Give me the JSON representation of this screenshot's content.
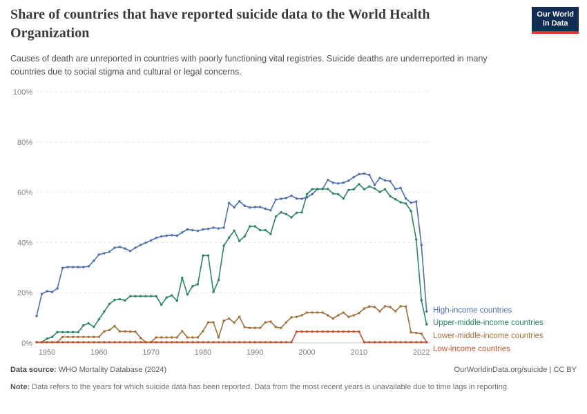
{
  "header": {
    "title": "Share of countries that have reported suicide data to the World Health Organization",
    "subtitle": "Causes of death are unreported in countries with poorly functioning vital registries. Suicide deaths are underreported in many countries due to social stigma and cultural or legal concerns."
  },
  "logo": {
    "line1": "Our World",
    "line2": "in Data",
    "bg_color": "#122B52",
    "bar_color": "#D8352E"
  },
  "chart_data": {
    "type": "line",
    "title": "Share of countries that have reported suicide data to the World Health Organization",
    "xlabel": "",
    "ylabel": "",
    "xlim": [
      1948,
      2023
    ],
    "ylim": [
      0,
      100
    ],
    "grid": "horizontal-dashed",
    "legend_position": "right-of-line-ends",
    "y_ticks": [
      0,
      20,
      40,
      60,
      80,
      100
    ],
    "y_tick_suffix": "%",
    "x_ticks": [
      1950,
      1960,
      1970,
      1980,
      1990,
      2000,
      2010,
      2022
    ],
    "x": [
      1948,
      1949,
      1950,
      1951,
      1952,
      1953,
      1954,
      1955,
      1956,
      1957,
      1958,
      1959,
      1960,
      1961,
      1962,
      1963,
      1964,
      1965,
      1966,
      1967,
      1968,
      1969,
      1970,
      1971,
      1972,
      1973,
      1974,
      1975,
      1976,
      1977,
      1978,
      1979,
      1980,
      1981,
      1982,
      1983,
      1984,
      1985,
      1986,
      1987,
      1988,
      1989,
      1990,
      1991,
      1992,
      1993,
      1994,
      1995,
      1996,
      1997,
      1998,
      1999,
      2000,
      2001,
      2002,
      2003,
      2004,
      2005,
      2006,
      2007,
      2008,
      2009,
      2010,
      2011,
      2012,
      2013,
      2014,
      2015,
      2016,
      2017,
      2018,
      2019,
      2020,
      2021,
      2022,
      2023
    ],
    "series": [
      {
        "name": "High-income countries",
        "color": "#4D6FAE",
        "values": [
          10.7,
          19.5,
          20.6,
          20.3,
          21.7,
          29.9,
          30.2,
          30.2,
          30.2,
          30.2,
          30.5,
          32.7,
          35.2,
          35.7,
          36.3,
          37.9,
          38.2,
          37.6,
          36.6,
          37.9,
          39,
          39.9,
          40.8,
          41.8,
          42.4,
          42.7,
          42.9,
          42.7,
          44,
          45.2,
          44.9,
          44.6,
          45.2,
          45.4,
          45.9,
          45.6,
          45.9,
          55.7,
          54,
          56.4,
          54.6,
          53.9,
          54.1,
          54.1,
          53.4,
          52.8,
          57.1,
          57.4,
          57.7,
          58.6,
          57.5,
          57.4,
          58,
          59.2,
          61.2,
          61.3,
          64.9,
          63.8,
          63.5,
          63.8,
          64.6,
          66,
          67.2,
          67.4,
          66.9,
          62.9,
          65.7,
          64.7,
          64.4,
          61.3,
          61.7,
          57.5,
          55.8,
          56.3,
          39,
          12.5
        ]
      },
      {
        "name": "Upper-middle-income countries",
        "color": "#2C8465",
        "values": [
          0.3,
          0.3,
          1.7,
          2.4,
          4.3,
          4.3,
          4.3,
          4.3,
          4.3,
          7,
          7.8,
          6.4,
          9.4,
          12.5,
          15.5,
          17.1,
          17.4,
          16.9,
          18.6,
          18.6,
          18.6,
          18.6,
          18.6,
          18.6,
          15.2,
          18.1,
          18.9,
          16.8,
          25.9,
          19.3,
          22.6,
          23.4,
          34.8,
          34.8,
          20.3,
          25,
          38.7,
          41.9,
          44.7,
          40.6,
          42.4,
          46.4,
          46.4,
          44.9,
          44.9,
          43.4,
          50.3,
          52,
          51.3,
          50,
          51.8,
          52,
          59.2,
          61.2,
          61.3,
          61.3,
          61.3,
          59.5,
          59.2,
          57.5,
          60.9,
          61.2,
          63.2,
          61.2,
          62.3,
          61.5,
          60.1,
          61.2,
          58.4,
          57.2,
          56,
          55.5,
          52.5,
          41.2,
          17,
          7.4
        ]
      },
      {
        "name": "Lower-middle-income countries",
        "color": "#A0713C",
        "values": [
          0.3,
          0.3,
          0.3,
          0.3,
          0.3,
          2.4,
          2.4,
          2.4,
          2.4,
          2.4,
          2.4,
          2.4,
          2.4,
          4.6,
          5.1,
          6.7,
          4.6,
          4.6,
          4.5,
          4.5,
          2,
          0.3,
          0.3,
          2.2,
          2.2,
          2.2,
          2.2,
          2.2,
          4.7,
          2.2,
          2.2,
          2.2,
          4.7,
          8.2,
          8.2,
          2.2,
          8.8,
          9.7,
          8.1,
          10.4,
          6.3,
          6,
          6,
          6,
          8.2,
          8.5,
          6.3,
          6,
          8.2,
          10.2,
          10.4,
          11,
          12.1,
          12.1,
          12.1,
          12.1,
          11,
          9.7,
          11,
          12.1,
          10.4,
          11,
          11.9,
          13.7,
          14.5,
          14.3,
          12.6,
          14.6,
          14.3,
          12.6,
          14.6,
          14.5,
          4.2,
          4,
          3.7,
          0.3
        ]
      },
      {
        "name": "Low-income countries",
        "color": "#C3512D",
        "values": [
          0.3,
          0.3,
          0.3,
          0.3,
          0.3,
          0.3,
          0.3,
          0.3,
          0.3,
          0.3,
          0.3,
          0.3,
          0.3,
          0.3,
          0.3,
          0.3,
          0.3,
          0.3,
          0.3,
          0.3,
          0.3,
          0.3,
          0.3,
          0.3,
          0.3,
          0.3,
          0.3,
          0.3,
          0.3,
          0.3,
          0.3,
          0.3,
          0.3,
          0.3,
          0.3,
          0.3,
          0.3,
          0.3,
          0.3,
          0.3,
          0.3,
          0.3,
          0.3,
          0.3,
          0.3,
          0.3,
          0.3,
          0.3,
          0.3,
          0.3,
          4.5,
          4.5,
          4.5,
          4.5,
          4.5,
          4.5,
          4.5,
          4.5,
          4.5,
          4.5,
          4.5,
          4.5,
          4.5,
          0.3,
          0.3,
          0.3,
          0.3,
          0.3,
          0.3,
          0.3,
          0.3,
          0.3,
          0.3,
          0.3,
          0.3,
          0.3
        ]
      }
    ]
  },
  "footer": {
    "datasource_label": "Data source:",
    "datasource_value": " WHO Mortality Database (2024)",
    "link": "OurWorldinData.org/suicide | CC BY",
    "note_label": "Note:",
    "note_value": " Data refers to the years for which suicide data has been reported. Data from the most recent years is unavailable due to time lags in reporting."
  }
}
